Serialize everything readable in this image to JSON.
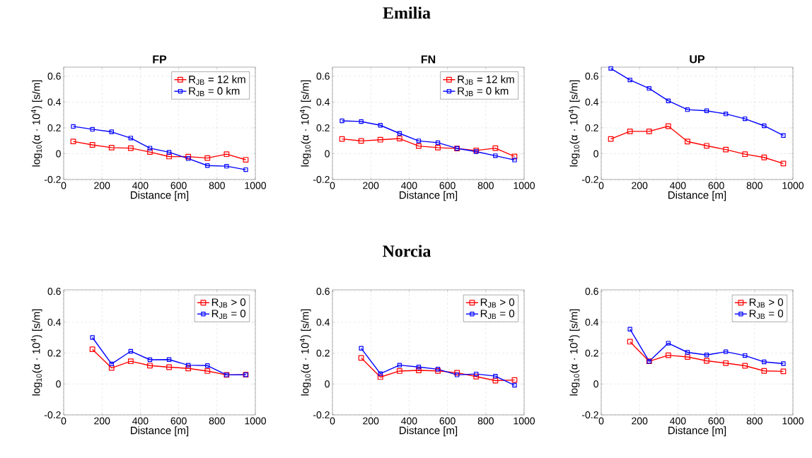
{
  "chart_data": [
    {
      "type": "line",
      "title": "FP",
      "annotations": [
        "Emilia"
      ],
      "xlabel": "Distance [m]",
      "ylabel": "log$_{10}$(α · 10$^{4}$) [s/m]",
      "xlim": [
        0,
        1000
      ],
      "ylim": [
        -0.2,
        0.67
      ],
      "xticks": [
        0,
        200,
        400,
        600,
        800,
        1000
      ],
      "yticks": [
        -0.2,
        0,
        0.2,
        0.4,
        0.6
      ],
      "grid": true,
      "legend": "top right",
      "marker": "square",
      "line_style": "solid",
      "x": [
        50,
        150,
        250,
        350,
        450,
        550,
        650,
        750,
        850,
        950
      ],
      "series": [
        {
          "name": "R$_{JB}$ = 12 km",
          "color": "#ff0000",
          "values": [
            0.095,
            0.068,
            0.047,
            0.043,
            0.013,
            -0.022,
            -0.023,
            -0.034,
            -0.004,
            -0.047
          ]
        },
        {
          "name": "R$_{JB}$ = 0 km",
          "color": "#0000ff",
          "values": [
            0.211,
            0.189,
            0.169,
            0.121,
            0.043,
            0.011,
            -0.038,
            -0.092,
            -0.097,
            -0.124
          ]
        }
      ]
    },
    {
      "type": "line",
      "title": "FN",
      "xlabel": "Distance [m]",
      "ylabel": "log$_{10}$(α · 10$^{4}$) [s/m]",
      "xlim": [
        0,
        1000
      ],
      "ylim": [
        -0.2,
        0.67
      ],
      "xticks": [
        0,
        200,
        400,
        600,
        800,
        1000
      ],
      "yticks": [
        -0.2,
        0,
        0.2,
        0.4,
        0.6
      ],
      "grid": true,
      "legend": "top right",
      "marker": "square",
      "line_style": "solid",
      "x": [
        50,
        150,
        250,
        350,
        450,
        550,
        650,
        750,
        850,
        950
      ],
      "series": [
        {
          "name": "R$_{JB}$ = 12 km",
          "color": "#ff0000",
          "values": [
            0.114,
            0.099,
            0.108,
            0.117,
            0.059,
            0.047,
            0.04,
            0.025,
            0.043,
            -0.022
          ]
        },
        {
          "name": "R$_{JB}$ = 0 km",
          "color": "#0000ff",
          "values": [
            0.254,
            0.249,
            0.22,
            0.157,
            0.099,
            0.085,
            0.041,
            0.016,
            -0.016,
            -0.049
          ]
        }
      ]
    },
    {
      "type": "line",
      "title": "UP",
      "xlabel": "Distance [m]",
      "ylabel": "log$_{10}$(α · 10$^{4}$) [s/m]",
      "xlim": [
        0,
        1000
      ],
      "ylim": [
        -0.2,
        0.67
      ],
      "xticks": [
        0,
        200,
        400,
        600,
        800,
        1000
      ],
      "yticks": [
        -0.2,
        0,
        0.2,
        0.4,
        0.6
      ],
      "grid": true,
      "marker": "square",
      "line_style": "solid",
      "x": [
        50,
        150,
        250,
        350,
        450,
        550,
        650,
        750,
        850,
        950
      ],
      "series": [
        {
          "color": "#ff0000",
          "values": [
            0.114,
            0.173,
            0.173,
            0.213,
            0.094,
            0.061,
            0.032,
            -0.004,
            -0.029,
            -0.076
          ]
        },
        {
          "color": "#0000ff",
          "values": [
            0.66,
            0.571,
            0.505,
            0.409,
            0.341,
            0.332,
            0.308,
            0.27,
            0.216,
            0.141
          ]
        }
      ]
    },
    {
      "type": "line",
      "annotations": [
        "Norcia"
      ],
      "xlabel": "Distance [m]",
      "ylabel": "log$_{10}$(α · 10$^{4}$) [s/m]",
      "xlim": [
        0,
        1000
      ],
      "ylim": [
        -0.2,
        0.61
      ],
      "xticks": [
        0,
        200,
        400,
        600,
        800,
        1000
      ],
      "yticks": [
        -0.2,
        0,
        0.2,
        0.4,
        0.6
      ],
      "grid": true,
      "legend": "top right",
      "marker": "square",
      "line_style": "solid",
      "x": [
        150,
        250,
        350,
        450,
        550,
        650,
        750,
        850,
        950
      ],
      "series": [
        {
          "name": "R$_{JB}$ > 0",
          "color": "#ff0000",
          "values": [
            0.225,
            0.104,
            0.147,
            0.119,
            0.109,
            0.101,
            0.084,
            0.059,
            0.06
          ]
        },
        {
          "name": "R$_{JB}$ = 0",
          "color": "#0000ff",
          "values": [
            0.301,
            0.13,
            0.212,
            0.157,
            0.158,
            0.122,
            0.119,
            0.059,
            0.06
          ]
        }
      ]
    },
    {
      "type": "line",
      "xlabel": "Distance [m]",
      "ylabel": "log$_{10}$(α · 10$^{4}$) [s/m]",
      "xlim": [
        0,
        1000
      ],
      "ylim": [
        -0.2,
        0.61
      ],
      "xticks": [
        0,
        200,
        400,
        600,
        800,
        1000
      ],
      "yticks": [
        -0.2,
        0,
        0.2,
        0.4,
        0.6
      ],
      "grid": true,
      "legend": "top right",
      "marker": "square",
      "line_style": "solid",
      "x": [
        150,
        250,
        350,
        450,
        550,
        650,
        750,
        850,
        950
      ],
      "series": [
        {
          "name": "R$_{JB}$ > 0",
          "color": "#ff0000",
          "values": [
            0.169,
            0.045,
            0.084,
            0.088,
            0.085,
            0.073,
            0.048,
            0.022,
            0.026
          ]
        },
        {
          "name": "R$_{JB}$ = 0",
          "color": "#0000ff",
          "values": [
            0.231,
            0.067,
            0.122,
            0.11,
            0.096,
            0.059,
            0.065,
            0.051,
            -0.008
          ]
        }
      ]
    },
    {
      "type": "line",
      "xlabel": "Distance [m]",
      "ylabel": "log$_{10}$(α · 10$^{4}$) [s/m]",
      "xlim": [
        0,
        1000
      ],
      "ylim": [
        -0.2,
        0.61
      ],
      "xticks": [
        0,
        200,
        400,
        600,
        800,
        1000
      ],
      "yticks": [
        -0.2,
        0,
        0.2,
        0.4,
        0.6
      ],
      "grid": true,
      "legend": "top right",
      "marker": "square",
      "line_style": "solid",
      "x": [
        150,
        250,
        350,
        450,
        550,
        650,
        750,
        850,
        950
      ],
      "series": [
        {
          "name": "R$_{JB}$ > 0",
          "color": "#ff0000",
          "values": [
            0.274,
            0.147,
            0.186,
            0.175,
            0.15,
            0.135,
            0.118,
            0.085,
            0.082
          ]
        },
        {
          "name": "R$_{JB}$ = 0",
          "color": "#0000ff",
          "values": [
            0.355,
            0.147,
            0.264,
            0.205,
            0.188,
            0.209,
            0.184,
            0.143,
            0.132
          ]
        }
      ]
    }
  ]
}
